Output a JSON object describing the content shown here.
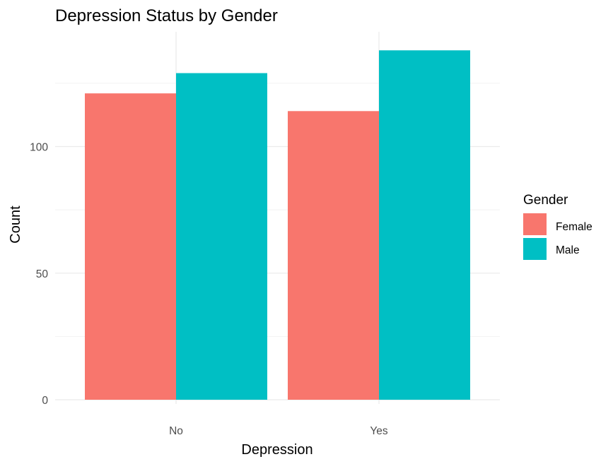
{
  "chart_data": {
    "type": "bar",
    "title": "Depression Status by Gender",
    "xlabel": "Depression",
    "ylabel": "Count",
    "categories": [
      "No",
      "Yes"
    ],
    "series": [
      {
        "name": "Female",
        "values": [
          121,
          114
        ],
        "color": "#F8766D"
      },
      {
        "name": "Male",
        "values": [
          129,
          138
        ],
        "color": "#00BFC4"
      }
    ],
    "ylim": [
      0,
      145
    ],
    "yticks": [
      0,
      50,
      100
    ],
    "ytick_labels": [
      "0",
      "50",
      "100"
    ],
    "legend": {
      "title": "Gender",
      "position": "right"
    },
    "grid": true
  }
}
